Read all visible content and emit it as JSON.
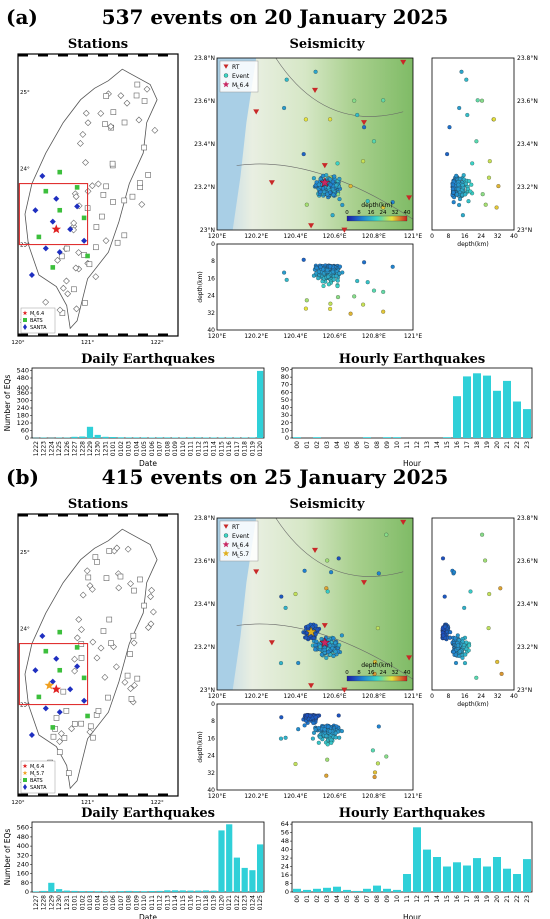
{
  "panels": [
    {
      "letter": "(a)",
      "title": "537 events on 20 January 2025",
      "stations_title": "Stations",
      "seismicity_title": "Seismicity",
      "station_legend": [
        "M_L6.4",
        "BATS",
        "SANTA"
      ],
      "map_lon_ticks": [
        "120°",
        "121°",
        "122°"
      ],
      "map_lat_ticks": [
        "22°",
        "23°",
        "24°",
        "25°"
      ],
      "seis_legend": [
        "RT",
        "Event",
        "M_L6.4"
      ],
      "seis_lat_ticks": [
        "23°N",
        "23.2°N",
        "23.4°N",
        "23.6°N",
        "23.8°N"
      ],
      "seis_lon_ticks": [
        "120°E",
        "120.2°E",
        "120.4°E",
        "120.6°E",
        "120.8°E",
        "121°E"
      ],
      "depth_ticks": [
        "0",
        "8",
        "16",
        "24",
        "32",
        "40"
      ],
      "depth_label": "depth(km)",
      "colorbar_label": "depth(km)",
      "colorbar_ticks": [
        "0",
        "8",
        "16",
        "24",
        "32",
        "40"
      ]
    },
    {
      "letter": "(b)",
      "title": "415 events on 25 January 2025",
      "stations_title": "Stations",
      "seismicity_title": "Seismicity",
      "station_legend": [
        "M_L6.4",
        "M_L5.7",
        "BATS",
        "SANTA"
      ],
      "map_lon_ticks": [
        "120°",
        "121°",
        "122°"
      ],
      "map_lat_ticks": [
        "22°",
        "23°",
        "24°",
        "25°"
      ],
      "seis_legend": [
        "RT",
        "Event",
        "M_L6.4",
        "M_L5.7"
      ],
      "seis_lat_ticks": [
        "23°N",
        "23.2°N",
        "23.4°N",
        "23.6°N",
        "23.8°N"
      ],
      "seis_lon_ticks": [
        "120°E",
        "120.2°E",
        "120.4°E",
        "120.6°E",
        "120.8°E",
        "121°E"
      ],
      "depth_ticks": [
        "0",
        "8",
        "16",
        "24",
        "32",
        "40"
      ],
      "depth_label": "depth(km)",
      "colorbar_label": "depth(km)",
      "colorbar_ticks": [
        "0",
        "8",
        "16",
        "24",
        "32",
        "40"
      ]
    }
  ],
  "chart_data": [
    {
      "type": "bar",
      "title": "Daily Earthquakes",
      "xlabel": "Date",
      "ylabel": "Number of EQs",
      "categories": [
        "1222",
        "1223",
        "1224",
        "1225",
        "1226",
        "1227",
        "1228",
        "1229",
        "1230",
        "1231",
        "0101",
        "0102",
        "0103",
        "0104",
        "0105",
        "0106",
        "0107",
        "0108",
        "0109",
        "0110",
        "0111",
        "0112",
        "0113",
        "0114",
        "0115",
        "0116",
        "0117",
        "0118",
        "0119",
        "0120"
      ],
      "values": [
        2,
        3,
        2,
        3,
        3,
        10,
        12,
        90,
        25,
        10,
        8,
        6,
        5,
        5,
        5,
        4,
        5,
        5,
        4,
        4,
        5,
        5,
        4,
        4,
        4,
        4,
        4,
        4,
        5,
        537
      ],
      "yticks": [
        0,
        60,
        120,
        180,
        240,
        300,
        360,
        400,
        480,
        540
      ],
      "ylim": [
        0,
        560
      ]
    },
    {
      "type": "bar",
      "title": "Hourly Earthquakes",
      "xlabel": "Hour",
      "ylabel": "",
      "categories": [
        "00",
        "01",
        "02",
        "03",
        "04",
        "05",
        "06",
        "07",
        "08",
        "09",
        "10",
        "11",
        "12",
        "13",
        "14",
        "15",
        "16",
        "17",
        "18",
        "19",
        "20",
        "21",
        "22",
        "23"
      ],
      "values": [
        1,
        0,
        1,
        0,
        0,
        0,
        0,
        1,
        0,
        1,
        1,
        0,
        0,
        0,
        0,
        1,
        55,
        81,
        85,
        82,
        62,
        75,
        48,
        38
      ],
      "yticks": [
        0,
        10,
        20,
        30,
        40,
        50,
        60,
        70,
        80,
        90
      ],
      "ylim": [
        0,
        92
      ]
    },
    {
      "type": "bar",
      "title": "Daily Earthquakes",
      "xlabel": "Date",
      "ylabel": "Number of EQs",
      "categories": [
        "1227",
        "1228",
        "1229",
        "1230",
        "1231",
        "0101",
        "0102",
        "0103",
        "0104",
        "0105",
        "0106",
        "0107",
        "0108",
        "0109",
        "0110",
        "0111",
        "0112",
        "0113",
        "0114",
        "0115",
        "0116",
        "0117",
        "0118",
        "0119",
        "0120",
        "0121",
        "0122",
        "0123",
        "0124",
        "0125"
      ],
      "values": [
        5,
        10,
        80,
        25,
        12,
        10,
        8,
        8,
        7,
        6,
        6,
        8,
        10,
        8,
        7,
        9,
        10,
        15,
        15,
        14,
        12,
        12,
        14,
        11,
        537,
        590,
        300,
        210,
        190,
        415
      ],
      "yticks": [
        0,
        80,
        160,
        240,
        320,
        400,
        480,
        560
      ],
      "ylim": [
        0,
        610
      ]
    },
    {
      "type": "bar",
      "title": "Hourly Earthquakes",
      "xlabel": "Hour",
      "ylabel": "",
      "categories": [
        "00",
        "01",
        "02",
        "03",
        "04",
        "05",
        "06",
        "07",
        "08",
        "09",
        "10",
        "11",
        "12",
        "13",
        "14",
        "15",
        "16",
        "17",
        "18",
        "19",
        "20",
        "21",
        "22",
        "23"
      ],
      "values": [
        3,
        2,
        3,
        4,
        5,
        2,
        1,
        3,
        6,
        3,
        2,
        17,
        61,
        40,
        33,
        24,
        28,
        25,
        32,
        24,
        33,
        22,
        17,
        31
      ],
      "yticks": [
        0,
        8,
        16,
        24,
        32,
        40,
        48,
        56,
        64
      ],
      "ylim": [
        0,
        66
      ]
    }
  ]
}
